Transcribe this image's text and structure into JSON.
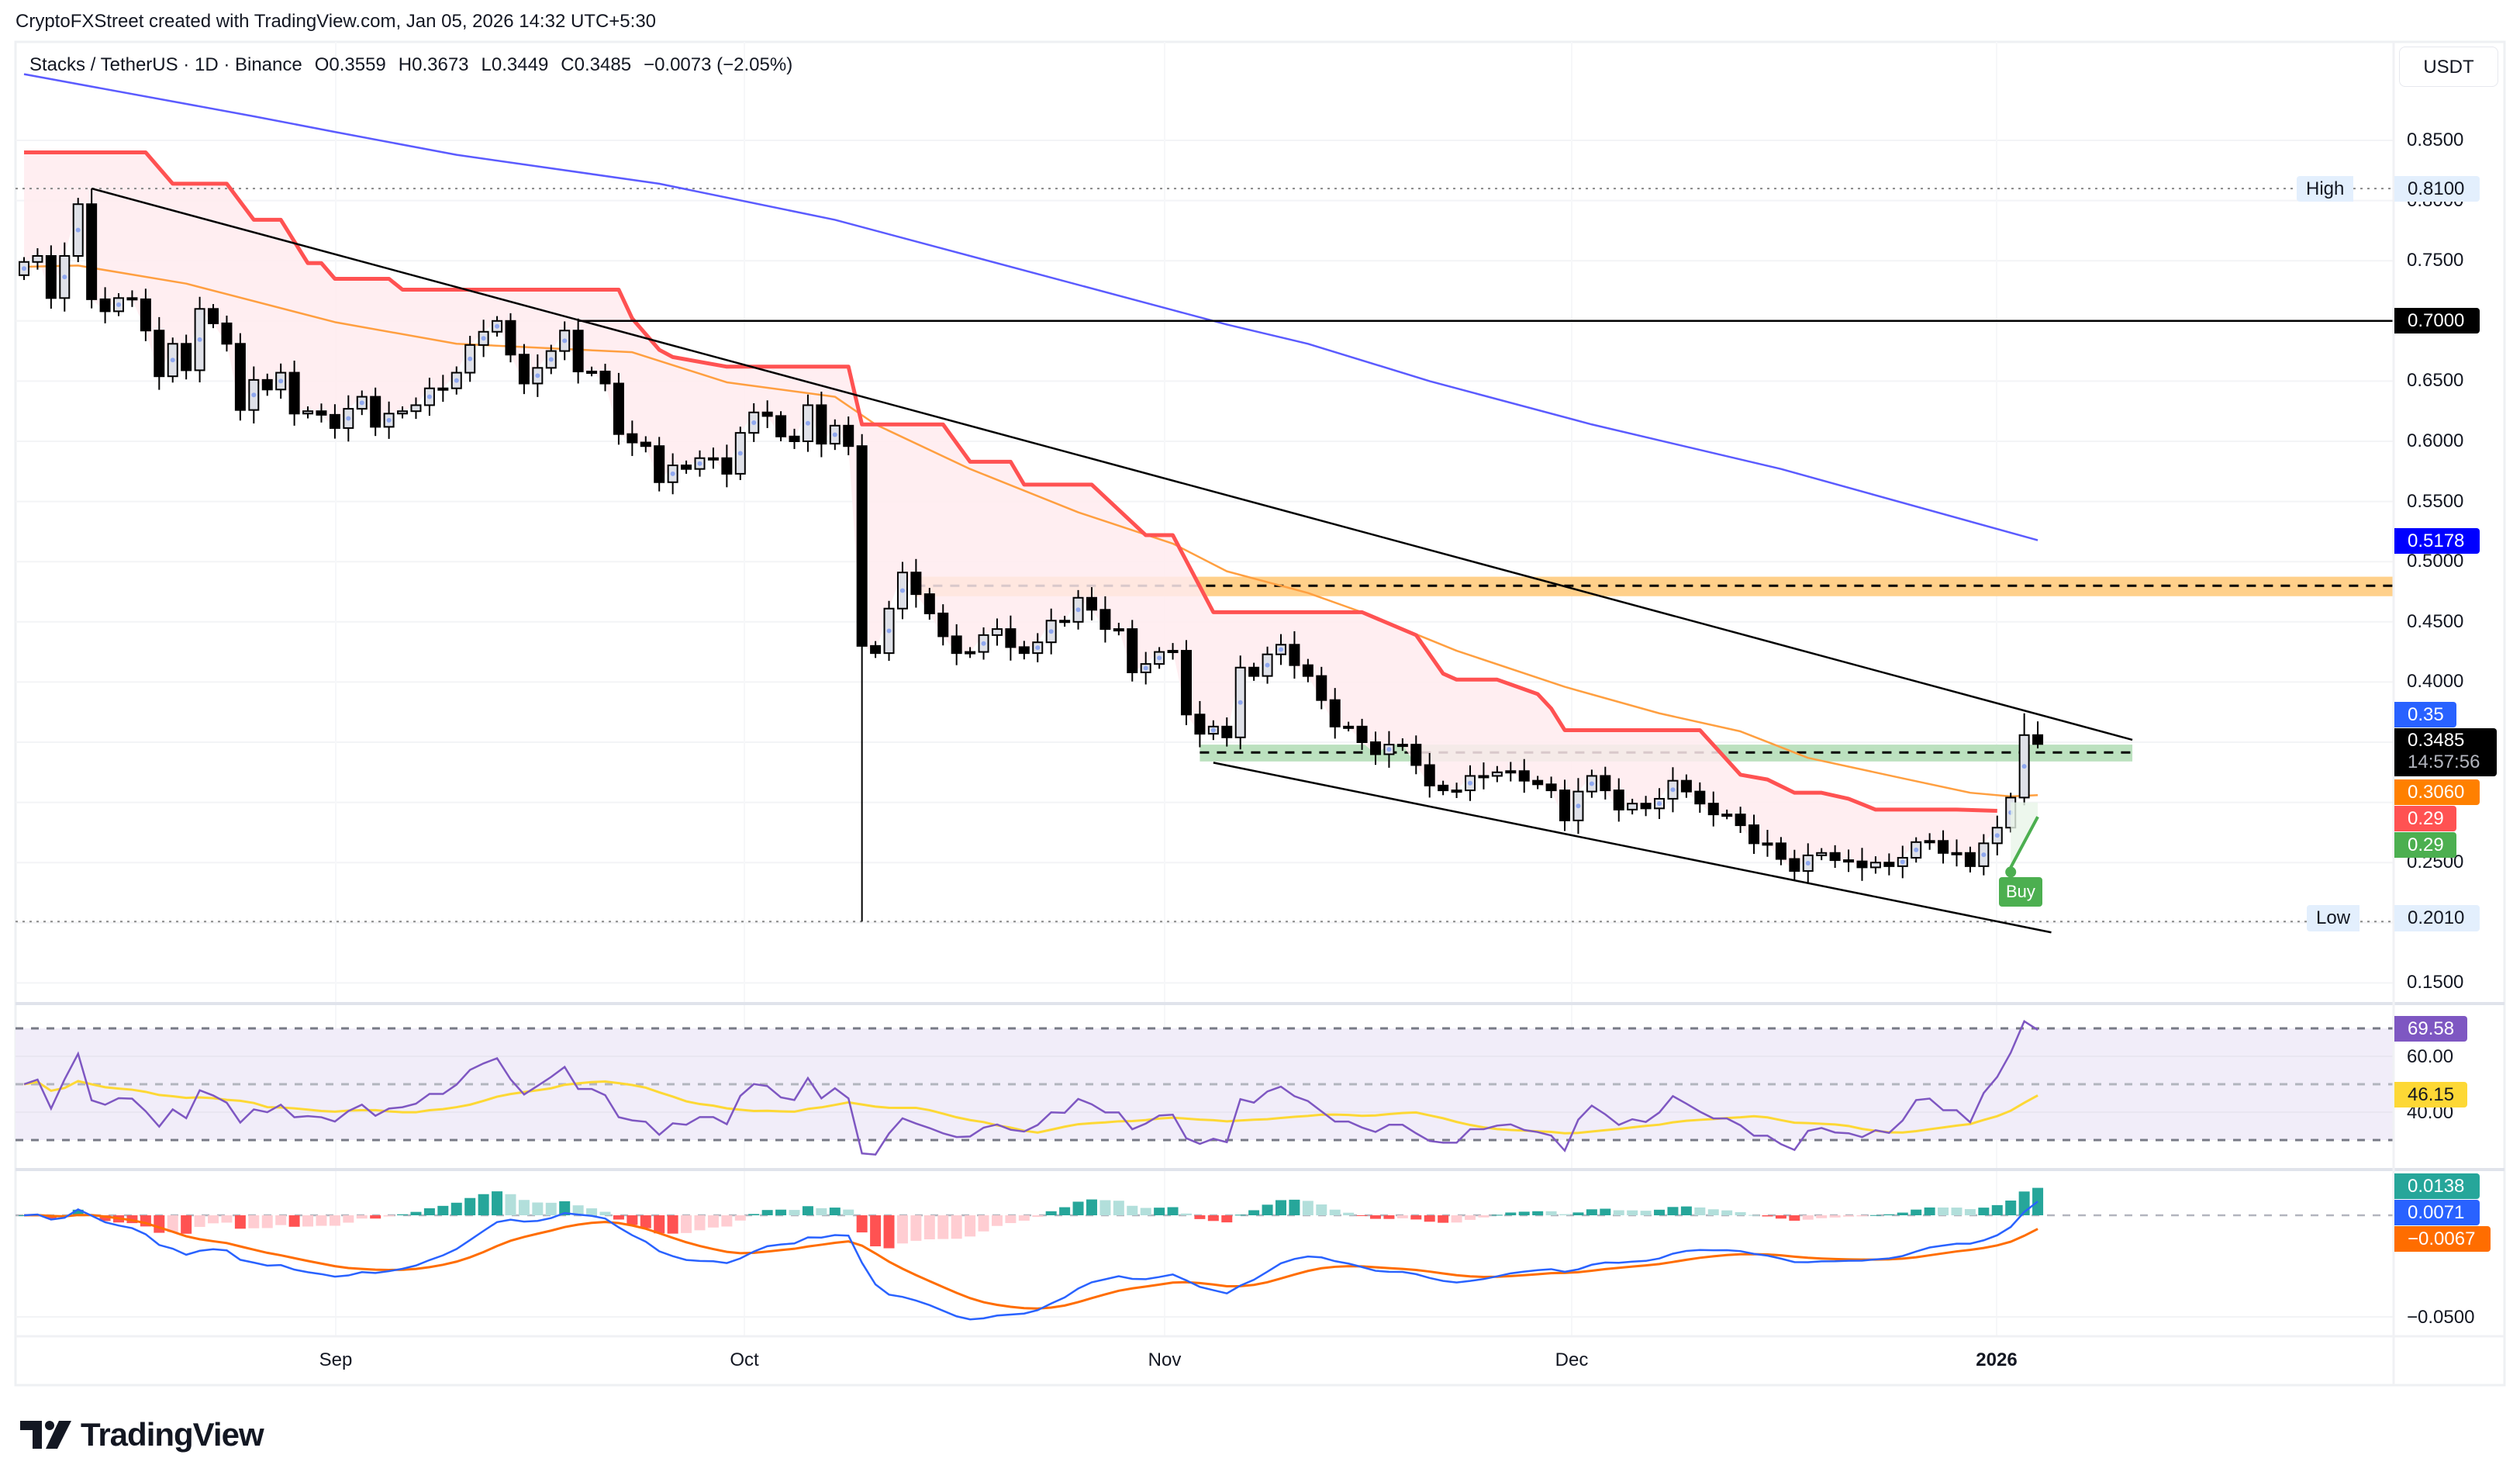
{
  "header": {
    "attribution": "CryptoFXStreet created with TradingView.com, Jan 05, 2026 14:32 UTC+5:30",
    "symbol": "Stacks / TetherUS · 1D · Binance",
    "o": "O0.3559",
    "h": "H0.3673",
    "l": "L0.3449",
    "c": "C0.3485",
    "change": "−0.0073 (−2.05%)"
  },
  "price_axis": {
    "currency": "USDT",
    "ticks": [
      "0.8500",
      "0.8000",
      "0.7500",
      "0.6500",
      "0.6000",
      "0.5500",
      "0.5000",
      "0.4500",
      "0.4000",
      "0.2500",
      "0.1500"
    ]
  },
  "price_labels": {
    "high_text": "High",
    "high_value": "0.8100",
    "level_value": "0.7000",
    "sma_long": "0.5178",
    "alert": "0.35",
    "last_price": "0.3485",
    "countdown": "14:57:56",
    "sma_short": "0.3060",
    "stop_line": "0.29",
    "signal_line": "0.29",
    "low_text": "Low",
    "low_value": "0.2010"
  },
  "signal": {
    "buy": "Buy"
  },
  "time_axis": [
    "Sep",
    "Oct",
    "Nov",
    "Dec",
    "2026"
  ],
  "rsi": {
    "ticks": [
      "60.00",
      "40.00"
    ],
    "value": "69.58",
    "ma": "46.15"
  },
  "macd": {
    "ticks": [
      "−0.0500"
    ],
    "histogram": "0.0138",
    "macd": "0.0071",
    "signal": "−0.0067"
  },
  "brand": "TradingView",
  "colors": {
    "up_fill": "#dfe1e8",
    "down_fill": "#000000",
    "sma_long": "#5b5bff",
    "sma_short": "#ff9f40",
    "stop_line": "#ff5252",
    "stop_fill": "#ffebee",
    "resistance_zone": "#ffd08a",
    "support_zone": "#b5deb8",
    "rsi": "#7e57c2",
    "rsi_ma": "#fdd835",
    "macd": "#2962ff",
    "macd_signal": "#ff6d00",
    "hist_up_strong": "#26a69a",
    "hist_up_weak": "#b2dfdb",
    "hist_down_strong": "#ff5252",
    "hist_down_weak": "#ffcdd2",
    "buy": "#4caf50",
    "alert": "#2962ff"
  },
  "chart_data": {
    "type": "candlestick",
    "title": "Stacks / TetherUS · 1D · Binance",
    "ylim": [
      0.13,
      0.93
    ],
    "grid": true,
    "first_open": 0.738,
    "high": {
      "date": "2025-08-14",
      "value": 0.81
    },
    "low": {
      "date": "2025-10-10",
      "value": 0.201
    },
    "last": {
      "o": 0.3559,
      "h": 0.3673,
      "l": 0.3449,
      "c": 0.3485
    },
    "months": [
      {
        "month": "2025-08",
        "first_day": 9,
        "closes": [
          0.749,
          0.754,
          0.719,
          0.754,
          0.797,
          0.718,
          0.708,
          0.719,
          0.718,
          0.692,
          0.654,
          0.681,
          0.659,
          0.71,
          0.698,
          0.681,
          0.626,
          0.651,
          0.643,
          0.657,
          0.623,
          0.625,
          0.622
        ]
      },
      {
        "month": "2025-09",
        "first_day": 1,
        "closes": [
          0.611,
          0.627,
          0.637,
          0.612,
          0.623,
          0.625,
          0.63,
          0.644,
          0.644,
          0.657,
          0.68,
          0.691,
          0.7,
          0.672,
          0.648,
          0.661,
          0.675,
          0.692,
          0.658,
          0.658,
          0.648,
          0.606,
          0.599,
          0.596,
          0.566,
          0.58,
          0.577,
          0.586,
          0.586,
          0.573
        ]
      },
      {
        "month": "2025-10",
        "first_day": 1,
        "closes": [
          0.607,
          0.624,
          0.621,
          0.604,
          0.6,
          0.63,
          0.598,
          0.613,
          0.596,
          0.43,
          0.424,
          0.461,
          0.491,
          0.473,
          0.457,
          0.438,
          0.424,
          0.425,
          0.439,
          0.444,
          0.429,
          0.424,
          0.433,
          0.451,
          0.45,
          0.47,
          0.46,
          0.444,
          0.444,
          0.408,
          0.415
        ]
      },
      {
        "month": "2025-11",
        "first_day": 1,
        "closes": [
          0.425,
          0.426,
          0.373,
          0.357,
          0.363,
          0.354,
          0.412,
          0.405,
          0.423,
          0.431,
          0.414,
          0.405,
          0.385,
          0.363,
          0.363,
          0.35,
          0.34,
          0.348,
          0.348,
          0.331,
          0.314,
          0.31,
          0.31,
          0.322,
          0.322,
          0.325,
          0.326,
          0.318,
          0.315,
          0.31
        ]
      },
      {
        "month": "2025-12",
        "first_day": 1,
        "closes": [
          0.285,
          0.309,
          0.322,
          0.31,
          0.294,
          0.299,
          0.295,
          0.303,
          0.318,
          0.309,
          0.299,
          0.29,
          0.29,
          0.281,
          0.266,
          0.266,
          0.253,
          0.243,
          0.256,
          0.258,
          0.252,
          0.251,
          0.246,
          0.25,
          0.247,
          0.254,
          0.267,
          0.268,
          0.258,
          0.258,
          0.247
        ]
      },
      {
        "month": "2026-01",
        "first_day": 1,
        "closes": [
          0.266,
          0.279,
          0.304,
          0.3559,
          0.3485
        ]
      }
    ],
    "sma_long": [
      [
        "2025-08-09",
        0.905
      ],
      [
        "2025-08-26",
        0.87
      ],
      [
        "2025-09-01",
        0.857
      ],
      [
        "2025-09-10",
        0.838
      ],
      [
        "2025-09-25",
        0.814
      ],
      [
        "2025-10-08",
        0.784
      ],
      [
        "2025-11-02",
        0.709
      ],
      [
        "2025-11-06",
        0.697
      ],
      [
        "2025-11-12",
        0.681
      ],
      [
        "2025-11-21",
        0.65
      ],
      [
        "2025-12-03",
        0.614
      ],
      [
        "2025-12-17",
        0.577
      ],
      [
        "2026-01-05",
        0.5178
      ]
    ],
    "sma_short": [
      [
        "2025-08-09",
        0.745
      ],
      [
        "2025-08-13",
        0.746
      ],
      [
        "2025-08-21",
        0.731
      ],
      [
        "2025-09-01",
        0.699
      ],
      [
        "2025-09-10",
        0.681
      ],
      [
        "2025-09-23",
        0.674
      ],
      [
        "2025-09-30",
        0.649
      ],
      [
        "2025-10-08",
        0.637
      ],
      [
        "2025-10-11",
        0.614
      ],
      [
        "2025-10-18",
        0.577
      ],
      [
        "2025-10-26",
        0.541
      ],
      [
        "2025-11-02",
        0.515
      ],
      [
        "2025-11-06",
        0.492
      ],
      [
        "2025-11-12",
        0.474
      ],
      [
        "2025-11-16",
        0.458
      ],
      [
        "2025-11-23",
        0.426
      ],
      [
        "2025-12-01",
        0.396
      ],
      [
        "2025-12-08",
        0.374
      ],
      [
        "2025-12-14",
        0.359
      ],
      [
        "2025-12-19",
        0.337
      ],
      [
        "2025-12-26",
        0.32
      ],
      [
        "2025-12-31",
        0.308
      ],
      [
        "2026-01-03",
        0.305
      ],
      [
        "2026-01-05",
        0.306
      ]
    ],
    "stop_line": [
      [
        "2025-08-09",
        0.84
      ],
      [
        "2025-08-18",
        0.84
      ],
      [
        "2025-08-20",
        0.814
      ],
      [
        "2025-08-24",
        0.814
      ],
      [
        "2025-08-26",
        0.784
      ],
      [
        "2025-08-28",
        0.784
      ],
      [
        "2025-08-30",
        0.748
      ],
      [
        "2025-08-31",
        0.748
      ],
      [
        "2025-09-01",
        0.735
      ],
      [
        "2025-09-05",
        0.735
      ],
      [
        "2025-09-06",
        0.726
      ],
      [
        "2025-09-22",
        0.726
      ],
      [
        "2025-09-23",
        0.702
      ],
      [
        "2025-09-25",
        0.676
      ],
      [
        "2025-09-26",
        0.67
      ],
      [
        "2025-09-30",
        0.662
      ],
      [
        "2025-10-09",
        0.662
      ],
      [
        "2025-10-10",
        0.614
      ],
      [
        "2025-10-16",
        0.614
      ],
      [
        "2025-10-18",
        0.583
      ],
      [
        "2025-10-21",
        0.583
      ],
      [
        "2025-10-22",
        0.564
      ],
      [
        "2025-10-27",
        0.564
      ],
      [
        "2025-10-31",
        0.522
      ],
      [
        "2025-11-02",
        0.522
      ],
      [
        "2025-11-05",
        0.458
      ],
      [
        "2025-11-16",
        0.458
      ],
      [
        "2025-11-20",
        0.439
      ],
      [
        "2025-11-22",
        0.407
      ],
      [
        "2025-11-23",
        0.402
      ],
      [
        "2025-11-26",
        0.402
      ],
      [
        "2025-11-27",
        0.398
      ],
      [
        "2025-11-29",
        0.39
      ],
      [
        "2025-11-30",
        0.378
      ],
      [
        "2025-12-01",
        0.36
      ],
      [
        "2025-12-11",
        0.36
      ],
      [
        "2025-12-14",
        0.323
      ],
      [
        "2025-12-16",
        0.319
      ],
      [
        "2025-12-18",
        0.308
      ],
      [
        "2025-12-20",
        0.308
      ],
      [
        "2025-12-22",
        0.303
      ],
      [
        "2025-12-24",
        0.294
      ],
      [
        "2025-12-30",
        0.294
      ],
      [
        "2026-01-02",
        0.293
      ]
    ],
    "annotations": {
      "upper_trendline": [
        [
          "2025-08-14",
          0.81
        ],
        [
          "2026-01-12",
          0.352
        ]
      ],
      "lower_trendline": [
        [
          "2025-11-05",
          0.333
        ],
        [
          "2026-01-06",
          0.192
        ]
      ],
      "horizontal_level": {
        "from": "2025-09-19",
        "value": 0.7
      },
      "resistance_zone": {
        "from": "2025-10-14",
        "low": 0.4713,
        "high": 0.4875,
        "mid": 0.48
      },
      "support_zone": {
        "from": "2025-11-04",
        "to": "2026-01-12",
        "low": 0.334,
        "high": 0.348,
        "mid": 0.3415
      },
      "buy_signal": {
        "date": "2026-01-03",
        "price": 0.246,
        "target_date": "2026-01-05",
        "target_price": 0.288
      }
    },
    "rsi_levels": [
      70,
      50,
      30
    ]
  }
}
